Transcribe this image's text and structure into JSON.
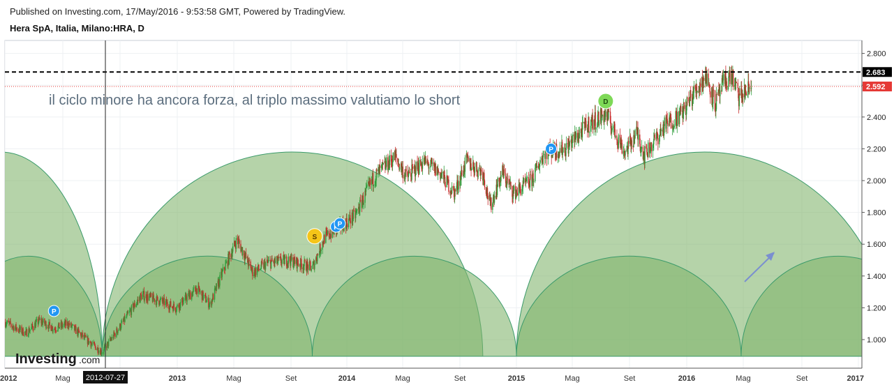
{
  "header": {
    "published": "Published on Investing.com, 17/May/2016 - 9:53:58 GMT, Powered by TradingView.",
    "symbol": "Hera SpA, Italia, Milano:HRA, D"
  },
  "annotation": "il ciclo minore ha ancora forza, al triplo massimo valutiamo lo short",
  "logo": {
    "brand": "Investing",
    "suffix": ".com"
  },
  "crosshair": {
    "date_label": "2012-07-27"
  },
  "colors": {
    "up": "#26a69a",
    "down": "#d32f2f",
    "candle_up": "#2e9c3a",
    "candle_down": "#c62828",
    "arc_fill": "#7fb36b",
    "arc_stroke": "#3a9a6a",
    "resistance": "#000000",
    "last_price": "#e53935",
    "marker_p": "#2196f3",
    "marker_s": "#f5c518",
    "marker_d": "#7ed957"
  },
  "chart_data": {
    "type": "candlestick",
    "title": "Hera SpA, Italia, Milano:HRA, D",
    "y_axis": {
      "range": [
        0.88,
        2.86
      ],
      "ticks": [
        "2.800",
        "2.600",
        "2.400",
        "2.200",
        "2.000",
        "1.800",
        "1.600",
        "1.400",
        "1.200",
        "1.000"
      ]
    },
    "x_axis": {
      "range": [
        "2012-01-01",
        "2016-12-31"
      ],
      "ticks": [
        {
          "date": "2012-01-01",
          "label": "2012"
        },
        {
          "date": "2012-05-01",
          "label": "Mag"
        },
        {
          "date": "2012-09-01",
          "label": "Set"
        },
        {
          "date": "2013-01-01",
          "label": "2013"
        },
        {
          "date": "2013-05-01",
          "label": "Mag"
        },
        {
          "date": "2013-09-01",
          "label": "Set"
        },
        {
          "date": "2014-01-01",
          "label": "2014"
        },
        {
          "date": "2014-05-01",
          "label": "Mag"
        },
        {
          "date": "2014-09-01",
          "label": "Set"
        },
        {
          "date": "2015-01-01",
          "label": "2015"
        },
        {
          "date": "2015-05-01",
          "label": "Mag"
        },
        {
          "date": "2015-09-01",
          "label": "Set"
        },
        {
          "date": "2016-01-01",
          "label": "2016"
        },
        {
          "date": "2016-05-01",
          "label": "Mag"
        },
        {
          "date": "2016-09-01",
          "label": "Set"
        },
        {
          "date": "2017-01-01",
          "label": "2017"
        }
      ]
    },
    "price_path": [
      [
        "2012-01-01",
        1.11
      ],
      [
        "2012-02-15",
        1.04
      ],
      [
        "2012-03-15",
        1.12
      ],
      [
        "2012-04-15",
        1.07
      ],
      [
        "2012-05-15",
        1.1
      ],
      [
        "2012-06-15",
        1.02
      ],
      [
        "2012-07-27",
        0.92
      ],
      [
        "2012-08-20",
        1.02
      ],
      [
        "2012-10-01",
        1.2
      ],
      [
        "2012-10-20",
        1.28
      ],
      [
        "2012-12-01",
        1.24
      ],
      [
        "2013-01-01",
        1.2
      ],
      [
        "2013-02-15",
        1.32
      ],
      [
        "2013-03-15",
        1.22
      ],
      [
        "2013-04-15",
        1.45
      ],
      [
        "2013-05-12",
        1.63
      ],
      [
        "2013-06-15",
        1.42
      ],
      [
        "2013-07-15",
        1.48
      ],
      [
        "2013-09-01",
        1.5
      ],
      [
        "2013-10-20",
        1.45
      ],
      [
        "2013-11-15",
        1.64
      ],
      [
        "2013-12-15",
        1.7
      ],
      [
        "2014-01-20",
        1.78
      ],
      [
        "2014-03-01",
        2.02
      ],
      [
        "2014-04-15",
        2.15
      ],
      [
        "2014-05-10",
        2.02
      ],
      [
        "2014-06-15",
        2.12
      ],
      [
        "2014-07-20",
        2.05
      ],
      [
        "2014-08-20",
        1.92
      ],
      [
        "2014-09-15",
        2.12
      ],
      [
        "2014-10-20",
        2.05
      ],
      [
        "2014-11-05",
        1.84
      ],
      [
        "2014-12-01",
        2.05
      ],
      [
        "2014-12-25",
        1.92
      ],
      [
        "2015-02-01",
        2.0
      ],
      [
        "2015-03-01",
        2.18
      ],
      [
        "2015-04-15",
        2.2
      ],
      [
        "2015-06-01",
        2.35
      ],
      [
        "2015-07-10",
        2.42
      ],
      [
        "2015-08-20",
        2.18
      ],
      [
        "2015-09-15",
        2.3
      ],
      [
        "2015-10-01",
        2.16
      ],
      [
        "2015-11-15",
        2.35
      ],
      [
        "2015-12-20",
        2.42
      ],
      [
        "2016-01-15",
        2.55
      ],
      [
        "2016-02-10",
        2.66
      ],
      [
        "2016-03-01",
        2.48
      ],
      [
        "2016-03-20",
        2.62
      ],
      [
        "2016-04-05",
        2.66
      ],
      [
        "2016-04-20",
        2.52
      ],
      [
        "2016-05-17",
        2.59
      ]
    ],
    "horizontal_lines": [
      {
        "value": 2.683,
        "label": "2.683",
        "style": "dashed"
      },
      {
        "value": 2.592,
        "label": "2.592",
        "style": "dotted"
      }
    ],
    "cycle_arcs": {
      "major": [
        [
          "2011-05-20",
          "2012-07-27"
        ],
        [
          "2012-07-27",
          "2014-10-20"
        ],
        [
          "2014-12-31",
          "2017-03-15"
        ]
      ],
      "minor": [
        [
          "2011-09-15",
          "2012-07-27"
        ],
        [
          "2012-07-27",
          "2013-10-20"
        ],
        [
          "2013-10-20",
          "2014-12-31"
        ],
        [
          "2014-12-31",
          "2016-04-25"
        ],
        [
          "2016-04-25",
          "2017-06-15"
        ]
      ],
      "major_top": 2.18,
      "minor_top": 1.525,
      "base": 0.895
    },
    "markers": [
      {
        "date": "2012-04-15",
        "value": 1.18,
        "label": "P"
      },
      {
        "date": "2013-10-25",
        "value": 1.65,
        "label": "S"
      },
      {
        "date": "2013-12-10",
        "value": 1.71,
        "label": "P"
      },
      {
        "date": "2013-12-18",
        "value": 1.73,
        "label": "P"
      },
      {
        "date": "2015-03-15",
        "value": 2.2,
        "label": "P"
      },
      {
        "date": "2015-07-10",
        "value": 2.5,
        "label": "D"
      }
    ]
  }
}
